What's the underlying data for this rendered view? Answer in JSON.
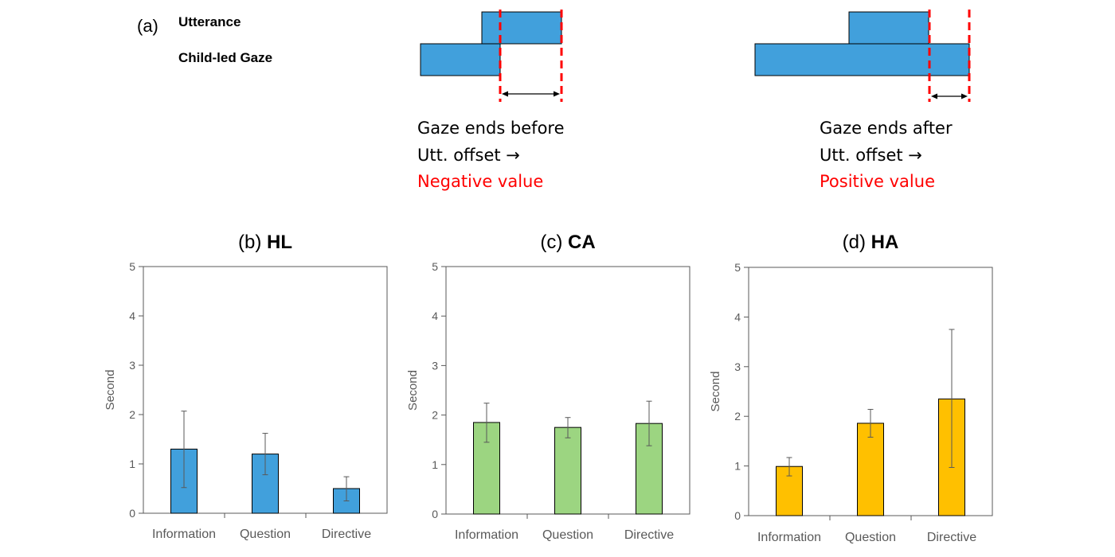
{
  "diagram": {
    "panel_label": "(a)",
    "row_utterance": "Utterance",
    "row_gaze": "Child-led Gaze",
    "left": {
      "line1": "Gaze ends before",
      "line2": "Utt. offset →",
      "line3": "Negative value"
    },
    "right": {
      "line1": "Gaze ends after",
      "line2": "Utt. offset →",
      "line3": "Positive value"
    },
    "colors": {
      "bar": "#41A0DC",
      "dash": "#FF0000"
    }
  },
  "chart_data": [
    {
      "type": "bar",
      "panel": "(b)",
      "title": "HL",
      "ylabel": "Second",
      "ylim": [
        0,
        5
      ],
      "yticks": [
        "0",
        "1",
        "2",
        "3",
        "4",
        "5"
      ],
      "categories": [
        "Information",
        "Question",
        "Directive"
      ],
      "values": [
        1.3,
        1.2,
        0.5
      ],
      "errors": [
        [
          0.52,
          2.07
        ],
        [
          0.78,
          1.62
        ],
        [
          0.25,
          0.74
        ]
      ],
      "color": "#41A0DC"
    },
    {
      "type": "bar",
      "panel": "(c)",
      "title": "CA",
      "ylabel": "Second",
      "ylim": [
        0,
        5
      ],
      "yticks": [
        "0",
        "1",
        "2",
        "3",
        "4",
        "5"
      ],
      "categories": [
        "Information",
        "Question",
        "Directive"
      ],
      "values": [
        1.85,
        1.75,
        1.83
      ],
      "errors": [
        [
          1.45,
          2.24
        ],
        [
          1.54,
          1.95
        ],
        [
          1.38,
          2.28
        ]
      ],
      "color": "#9CD581"
    },
    {
      "type": "bar",
      "panel": "(d)",
      "title": "HA",
      "ylabel": "Second",
      "ylim": [
        0,
        5
      ],
      "yticks": [
        "0",
        "1",
        "2",
        "3",
        "4",
        "5"
      ],
      "categories": [
        "Information",
        "Question",
        "Directive"
      ],
      "values": [
        0.99,
        1.86,
        2.35
      ],
      "errors": [
        [
          0.8,
          1.17
        ],
        [
          1.58,
          2.14
        ],
        [
          0.97,
          3.75
        ]
      ],
      "color": "#FFC000"
    }
  ]
}
